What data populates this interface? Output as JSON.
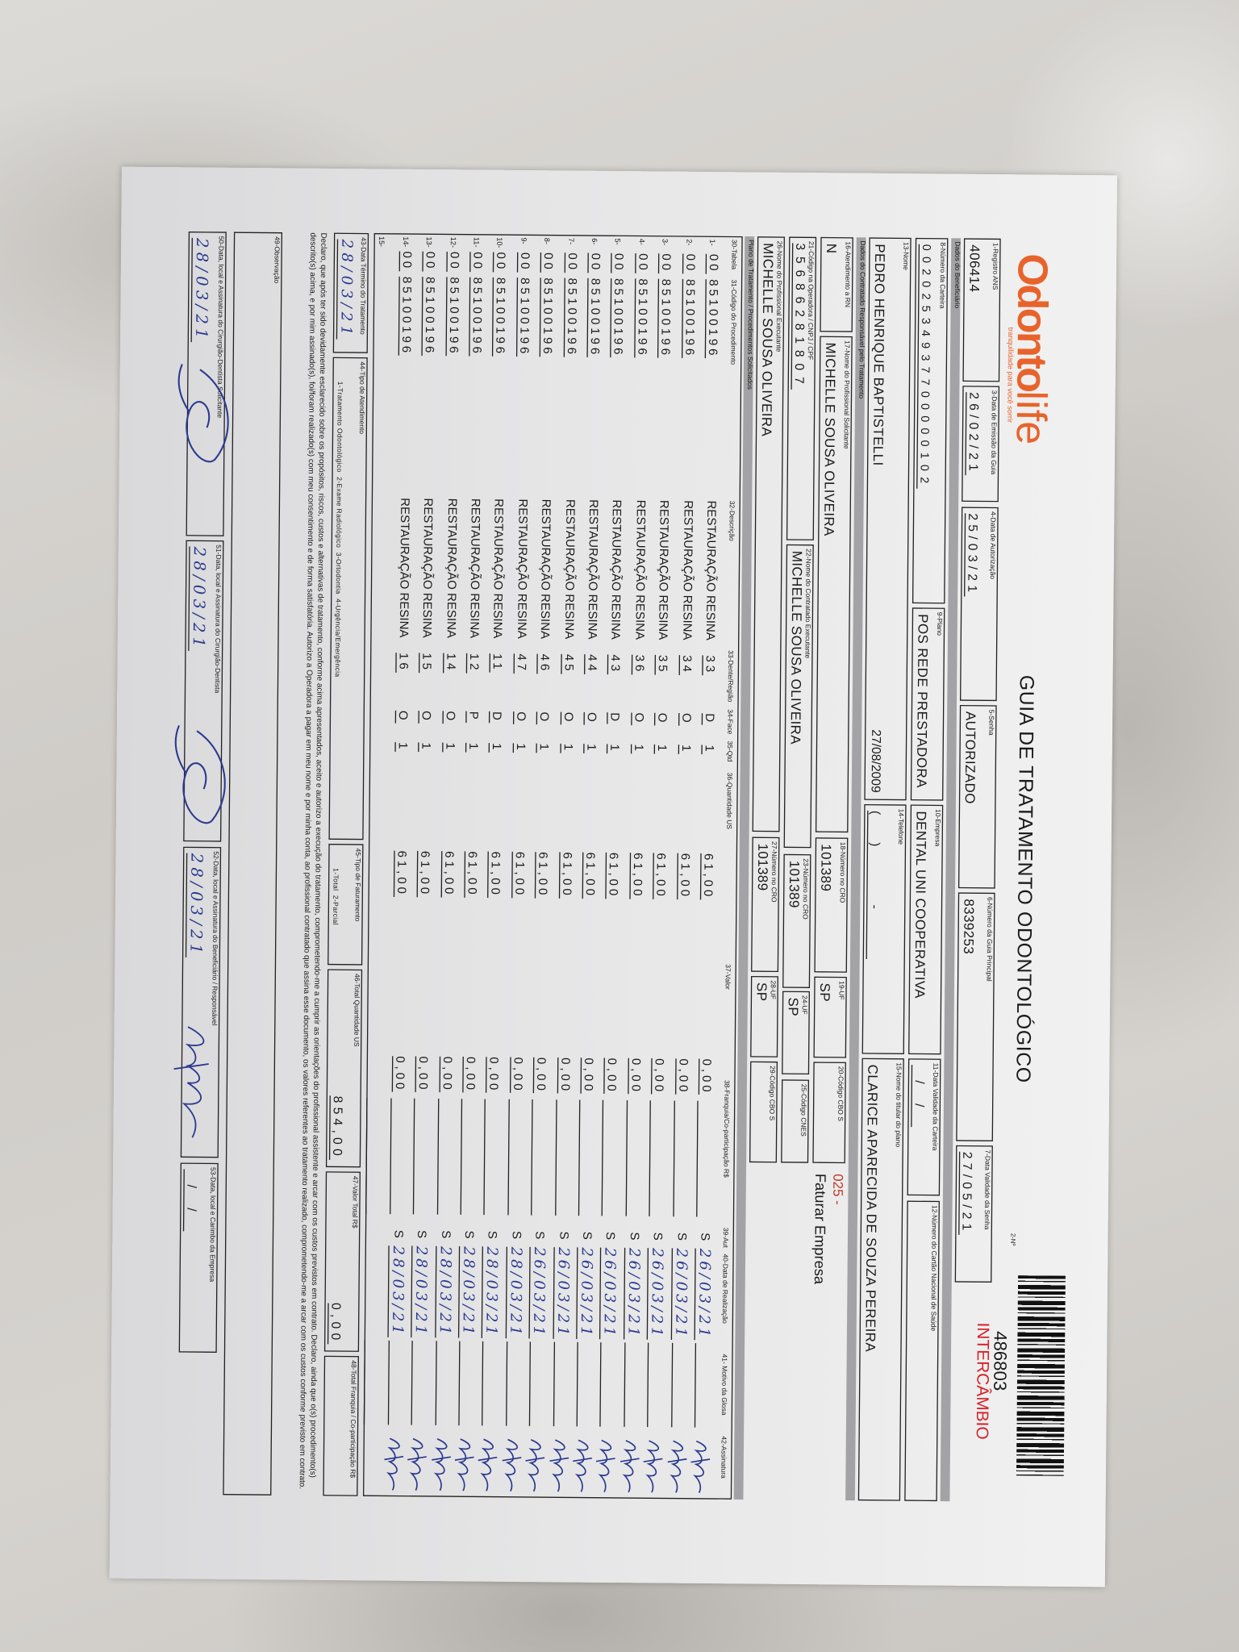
{
  "logo": {
    "brand_odonto": "Odonto",
    "brand_life": "life",
    "tagline": "tranquilidade para você sorrir",
    "color": "#e8632b"
  },
  "title": "GUIA DE TRATAMENTO ODONTOLÓGICO",
  "guide_number_label": "2-Nº",
  "guide_number": "486803",
  "guide_type": "INTERCÂMBIO",
  "guide_type_color": "#d2232a",
  "header": {
    "f1": {
      "label": "1-Registro ANS",
      "value": "406414"
    },
    "f3": {
      "label": "3-Data de Emissão da Guia",
      "value": "26/02/21"
    },
    "f4": {
      "label": "4-Data de Autorização",
      "value": "25/03/21"
    },
    "f5": {
      "label": "5-Senha",
      "value": "AUTORIZADO"
    },
    "f6": {
      "label": "6-Número da Guia Principal",
      "value": "8339253"
    },
    "f7": {
      "label": "7-Data Validade da Senha",
      "value": "27/05/21"
    }
  },
  "sections": {
    "beneficiary": "Dados do Beneficiário",
    "contractor": "Dados do Contratado Responsável pelo Tratamento",
    "plan": "Plano de Tratamento / Procedimentos Solicitados"
  },
  "beneficiary": {
    "f8": {
      "label": "8-Número da Carteira",
      "value": "00202534937700000102"
    },
    "f9": {
      "label": "9-Plano",
      "value": "POS REDE PRESTADORA"
    },
    "f10": {
      "label": "10-Empresa",
      "value": "DENTAL UNI  COOPERATIVA"
    },
    "f11": {
      "label": "11-Data Validade da Carteira",
      "value": "  /  /  "
    },
    "f12": {
      "label": "12-Número do Cartão Nacional de Saúde",
      "value": ""
    },
    "f13": {
      "label": "13-Nome",
      "value": "PEDRO HENRIQUE BAPTISTELLI"
    },
    "birth_date": "27/08/2009",
    "f14": {
      "label": "14-Telefone",
      "value": "(   )       -      "
    },
    "f15": {
      "label": "15-Nome do titular do plano",
      "value": "CLARICE APARECIDA DE SOUZA PEREIRA"
    }
  },
  "contractor": {
    "f16": {
      "label": "16-Atendimento a RN",
      "value": "N"
    },
    "f17": {
      "label": "17-Nome do Profissional Solicitante",
      "value": "MICHELLE SOUSA OLIVEIRA"
    },
    "f18": {
      "label": "18-Número no CRO",
      "value": "101389"
    },
    "f19": {
      "label": "19-UF",
      "value": "SP"
    },
    "f20": {
      "label": "20-Código CBO S",
      "value": ""
    },
    "billing_code": "025 -",
    "billing_label": "Faturar Empresa",
    "billing_code_color": "#c0392b",
    "f21": {
      "label": "21-Código na Operadora / CNPJ / CPF",
      "value": "35686281807"
    },
    "f22": {
      "label": "22-Nome do Contratado Executante",
      "value": "MICHELLE SOUSA OLIVEIRA"
    },
    "f23": {
      "label": "23-Número no CRO",
      "value": "101389"
    },
    "f24": {
      "label": "24-UF",
      "value": "SP"
    },
    "f25": {
      "label": "25-Código CNES",
      "value": ""
    },
    "f26": {
      "label": "26-Nome do Profissional Executante",
      "value": "MICHELLE SOUSA OLIVEIRA"
    },
    "f27": {
      "label": "27-Número no CRO",
      "value": "101389"
    },
    "f28": {
      "label": "28-UF",
      "value": "SP"
    },
    "f29": {
      "label": "29-Código CBO S",
      "value": ""
    }
  },
  "table": {
    "headers": {
      "tabela": "30-Tabela",
      "codigo": "31-Código do Procedimento",
      "descricao": "32-Descrição",
      "dente": "33-Dente/Região",
      "face": "34-Face",
      "qtd": "35-Qtd",
      "us": "36-Quantidade US",
      "valor": "37-Valor",
      "franquia": "38-Franquia/Co-participação R$",
      "aut": "39-Aut",
      "data": "40-Data de Realização",
      "glosa": "41- Motivo da Glosa",
      "assinatura": "42-Assinatura"
    },
    "rows": [
      {
        "n": "1-",
        "tabela": "00",
        "codigo": "85100196",
        "descricao": "RESTAURAÇÃO RESINA",
        "dente": "33",
        "face": "D",
        "qtd": "1",
        "us": "61,00",
        "valor": "0,00",
        "aut": "S",
        "data": "26/03/21"
      },
      {
        "n": "2-",
        "tabela": "00",
        "codigo": "85100196",
        "descricao": "RESTAURAÇÃO RESINA",
        "dente": "34",
        "face": "O",
        "qtd": "1",
        "us": "61,00",
        "valor": "0,00",
        "aut": "S",
        "data": "26/03/21"
      },
      {
        "n": "3-",
        "tabela": "00",
        "codigo": "85100196",
        "descricao": "RESTAURAÇÃO RESINA",
        "dente": "35",
        "face": "O",
        "qtd": "1",
        "us": "61,00",
        "valor": "0,00",
        "aut": "S",
        "data": "26/03/21"
      },
      {
        "n": "4-",
        "tabela": "00",
        "codigo": "85100196",
        "descricao": "RESTAURAÇÃO RESINA",
        "dente": "36",
        "face": "O",
        "qtd": "1",
        "us": "61,00",
        "valor": "0,00",
        "aut": "S",
        "data": "26/03/21"
      },
      {
        "n": "5-",
        "tabela": "00",
        "codigo": "85100196",
        "descricao": "RESTAURAÇÃO RESINA",
        "dente": "43",
        "face": "D",
        "qtd": "1",
        "us": "61,00",
        "valor": "0,00",
        "aut": "S",
        "data": "26/03/21"
      },
      {
        "n": "6-",
        "tabela": "00",
        "codigo": "85100196",
        "descricao": "RESTAURAÇÃO RESINA",
        "dente": "44",
        "face": "O",
        "qtd": "1",
        "us": "61,00",
        "valor": "0,00",
        "aut": "S",
        "data": "26/03/21"
      },
      {
        "n": "7-",
        "tabela": "00",
        "codigo": "85100196",
        "descricao": "RESTAURAÇÃO RESINA",
        "dente": "45",
        "face": "O",
        "qtd": "1",
        "us": "61,00",
        "valor": "0,00",
        "aut": "S",
        "data": "26/03/21"
      },
      {
        "n": "8-",
        "tabela": "00",
        "codigo": "85100196",
        "descricao": "RESTAURAÇÃO RESINA",
        "dente": "46",
        "face": "O",
        "qtd": "1",
        "us": "61,00",
        "valor": "0,00",
        "aut": "S",
        "data": "26/03/21"
      },
      {
        "n": "9-",
        "tabela": "00",
        "codigo": "85100196",
        "descricao": "RESTAURAÇÃO RESINA",
        "dente": "47",
        "face": "O",
        "qtd": "1",
        "us": "61,00",
        "valor": "0,00",
        "aut": "S",
        "data": "28/03/21"
      },
      {
        "n": "10-",
        "tabela": "00",
        "codigo": "85100196",
        "descricao": "RESTAURAÇÃO RESINA",
        "dente": "11",
        "face": "D",
        "qtd": "1",
        "us": "61,00",
        "valor": "0,00",
        "aut": "S",
        "data": "28/03/21"
      },
      {
        "n": "11-",
        "tabela": "00",
        "codigo": "85100196",
        "descricao": "RESTAURAÇÃO RESINA",
        "dente": "12",
        "face": "P",
        "qtd": "1",
        "us": "61,00",
        "valor": "0,00",
        "aut": "S",
        "data": "28/03/21"
      },
      {
        "n": "12-",
        "tabela": "00",
        "codigo": "85100196",
        "descricao": "RESTAURAÇÃO RESINA",
        "dente": "14",
        "face": "O",
        "qtd": "1",
        "us": "61,00",
        "valor": "0,00",
        "aut": "S",
        "data": "28/03/21"
      },
      {
        "n": "13-",
        "tabela": "00",
        "codigo": "85100196",
        "descricao": "RESTAURAÇÃO RESINA",
        "dente": "15",
        "face": "O",
        "qtd": "1",
        "us": "61,00",
        "valor": "0,00",
        "aut": "S",
        "data": "28/03/21"
      },
      {
        "n": "14-",
        "tabela": "00",
        "codigo": "85100196",
        "descricao": "RESTAURAÇÃO RESINA",
        "dente": "16",
        "face": "O",
        "qtd": "1",
        "us": "61,00",
        "valor": "0,00",
        "aut": "S",
        "data": "28/03/21"
      },
      {
        "n": "15-",
        "tabela": "",
        "codigo": "",
        "descricao": "",
        "dente": "",
        "face": "",
        "qtd": "",
        "us": "",
        "valor": "",
        "aut": "",
        "data": ""
      }
    ]
  },
  "totals": {
    "f43": {
      "label": "43-Data Término do Tratamento",
      "value": "28/03/21"
    },
    "f44": {
      "label": "44-Tipo de Atendimento",
      "options": "1-Tratamento Odontológico  2-Exame Radiológico  3-Ortodontia  4-Urgência/Emergência"
    },
    "f45": {
      "label": "45-Tipo de Faturamento",
      "options": "1-Total  2-Parcial"
    },
    "f46": {
      "label": "46-Total Quantidade US",
      "value": "854,00"
    },
    "f47": {
      "label": "47-Valor Total R$",
      "value": "0,00"
    },
    "f48": {
      "label": "48-Total Franquia / Co-participação R$",
      "value": ""
    }
  },
  "declaration": "Declaro, que após ter sido devidamente esclarecido sobre os propósitos, riscos, custos e alternativas de tratamento, conforme acima apresentados, aceito e autorizo a execução do tratamento, comprometendo-me a cumprir as orientações do profissional assistente e arcar com os custos previstos em contrato. Declaro, ainda que o(s) procedimento(s) descrito(s) acima, e por mim assinado(s), foi/foram realizado(s) com meu consentimento e de forma satisfatória. Autorizo a Operadora a pagar em meu nome e por minha conta, ao profissional contratado que assina esse documento, os valores referentes ao tratamento realizado, comprometendo-me a arcar com os custos conforme previsto em contrato.",
  "observation": {
    "label": "49-Observação",
    "value": ""
  },
  "signatures": {
    "f50": {
      "label": "50-Data, local e Assinatura do Cirurgião-Dentista Solicitante",
      "value": "28/03/21"
    },
    "f51": {
      "label": "51-Data, local e Assinatura do Cirurgião-Dentista",
      "value": "28/03/21"
    },
    "f52": {
      "label": "52-Data, local e Assinatura do Beneficiário / Responsável",
      "value": "28/03/21"
    },
    "f53": {
      "label": "53-Data, local e Carimbo da Empresa",
      "value": "  /  /  "
    }
  },
  "ink_color": "#2b3a8f"
}
